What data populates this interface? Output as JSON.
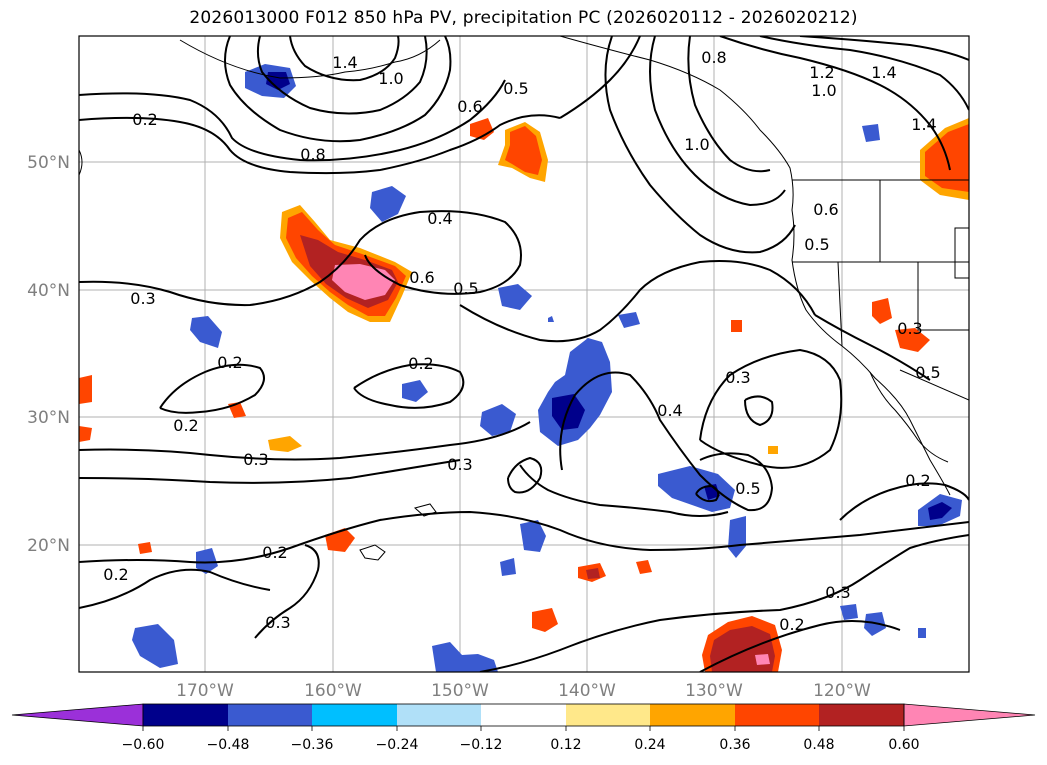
{
  "title": "2026013000 F012 850 hPa PV, precipitation PC (2026020112 - 2026020212)",
  "map": {
    "lat_labels": [
      "50°N",
      "40°N",
      "30°N",
      "20°N"
    ],
    "lon_labels": [
      "170°W",
      "160°W",
      "150°W",
      "140°W",
      "130°W",
      "120°W"
    ],
    "contour_labels": [
      "1.4",
      "1.0",
      "0.2",
      "0.6",
      "0.5",
      "0.8",
      "0.8",
      "1.2",
      "1.0",
      "1.4",
      "1.4",
      "1.0",
      "0.6",
      "0.4",
      "0.6",
      "0.5",
      "0.5",
      "0.3",
      "0.2",
      "0.2",
      "0.3",
      "0.2",
      "0.3",
      "0.3",
      "0.4",
      "0.5",
      "0.2",
      "0.2",
      "0.2",
      "0.3",
      "0.2",
      "0.3",
      "0.3",
      "0.5"
    ]
  },
  "colorbar": {
    "tick_labels": [
      "−0.60",
      "−0.48",
      "−0.36",
      "−0.24",
      "−0.12",
      "0.12",
      "0.24",
      "0.36",
      "0.48",
      "0.60"
    ],
    "colors": [
      "#9b30d9",
      "#00008b",
      "#3a5ad0",
      "#00bfff",
      "#b0e0f8",
      "#ffffff",
      "#ffe88a",
      "#ffa500",
      "#ff4500",
      "#b22222",
      "#ff85b4"
    ]
  },
  "colors": {
    "neg_dark": "#00008b",
    "neg_mid": "#3a5ad0",
    "neg_light": "#00bfff",
    "neg_pale": "#b0e0f8",
    "pos_pale": "#ffe88a",
    "pos_mid": "#ffa500",
    "pos_strong": "#ff4500",
    "pos_dark": "#b22222",
    "pos_max": "#ff85b4"
  }
}
